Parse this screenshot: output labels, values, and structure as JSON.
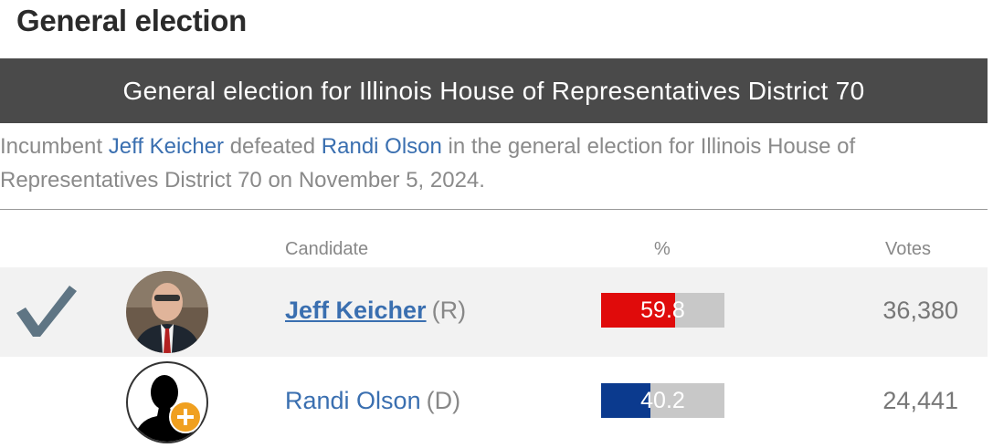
{
  "section": {
    "title": "General election"
  },
  "race": {
    "header": "General election for Illinois House of Representatives District 70"
  },
  "summary": {
    "prefix": "Incumbent ",
    "winner": "Jeff Keicher",
    "middle": " defeated ",
    "loser": "Randi Olson",
    "suffix": " in the general election for Illinois House of Representatives District 70 on November 5, 2024."
  },
  "table": {
    "headers": {
      "candidate": "Candidate",
      "pct": "%",
      "votes": "Votes"
    },
    "rows": [
      {
        "name": "Jeff Keicher",
        "party": "(R)",
        "pct_label": "59.8",
        "pct": 59.8,
        "votes": "36,380",
        "winner": true,
        "color": "#e00b0b",
        "icon": "checkmark-icon"
      },
      {
        "name": "Randi Olson",
        "party": "(D)",
        "pct_label": "40.2",
        "pct": 40.2,
        "votes": "24,441",
        "winner": false,
        "color": "#0b3a8e",
        "icon": "silhouette-placeholder-icon"
      }
    ]
  },
  "colors": {
    "header_bg": "#4a4a4a",
    "link": "#3a6fb0",
    "republican": "#e00b0b",
    "democrat": "#0b3a8e"
  }
}
